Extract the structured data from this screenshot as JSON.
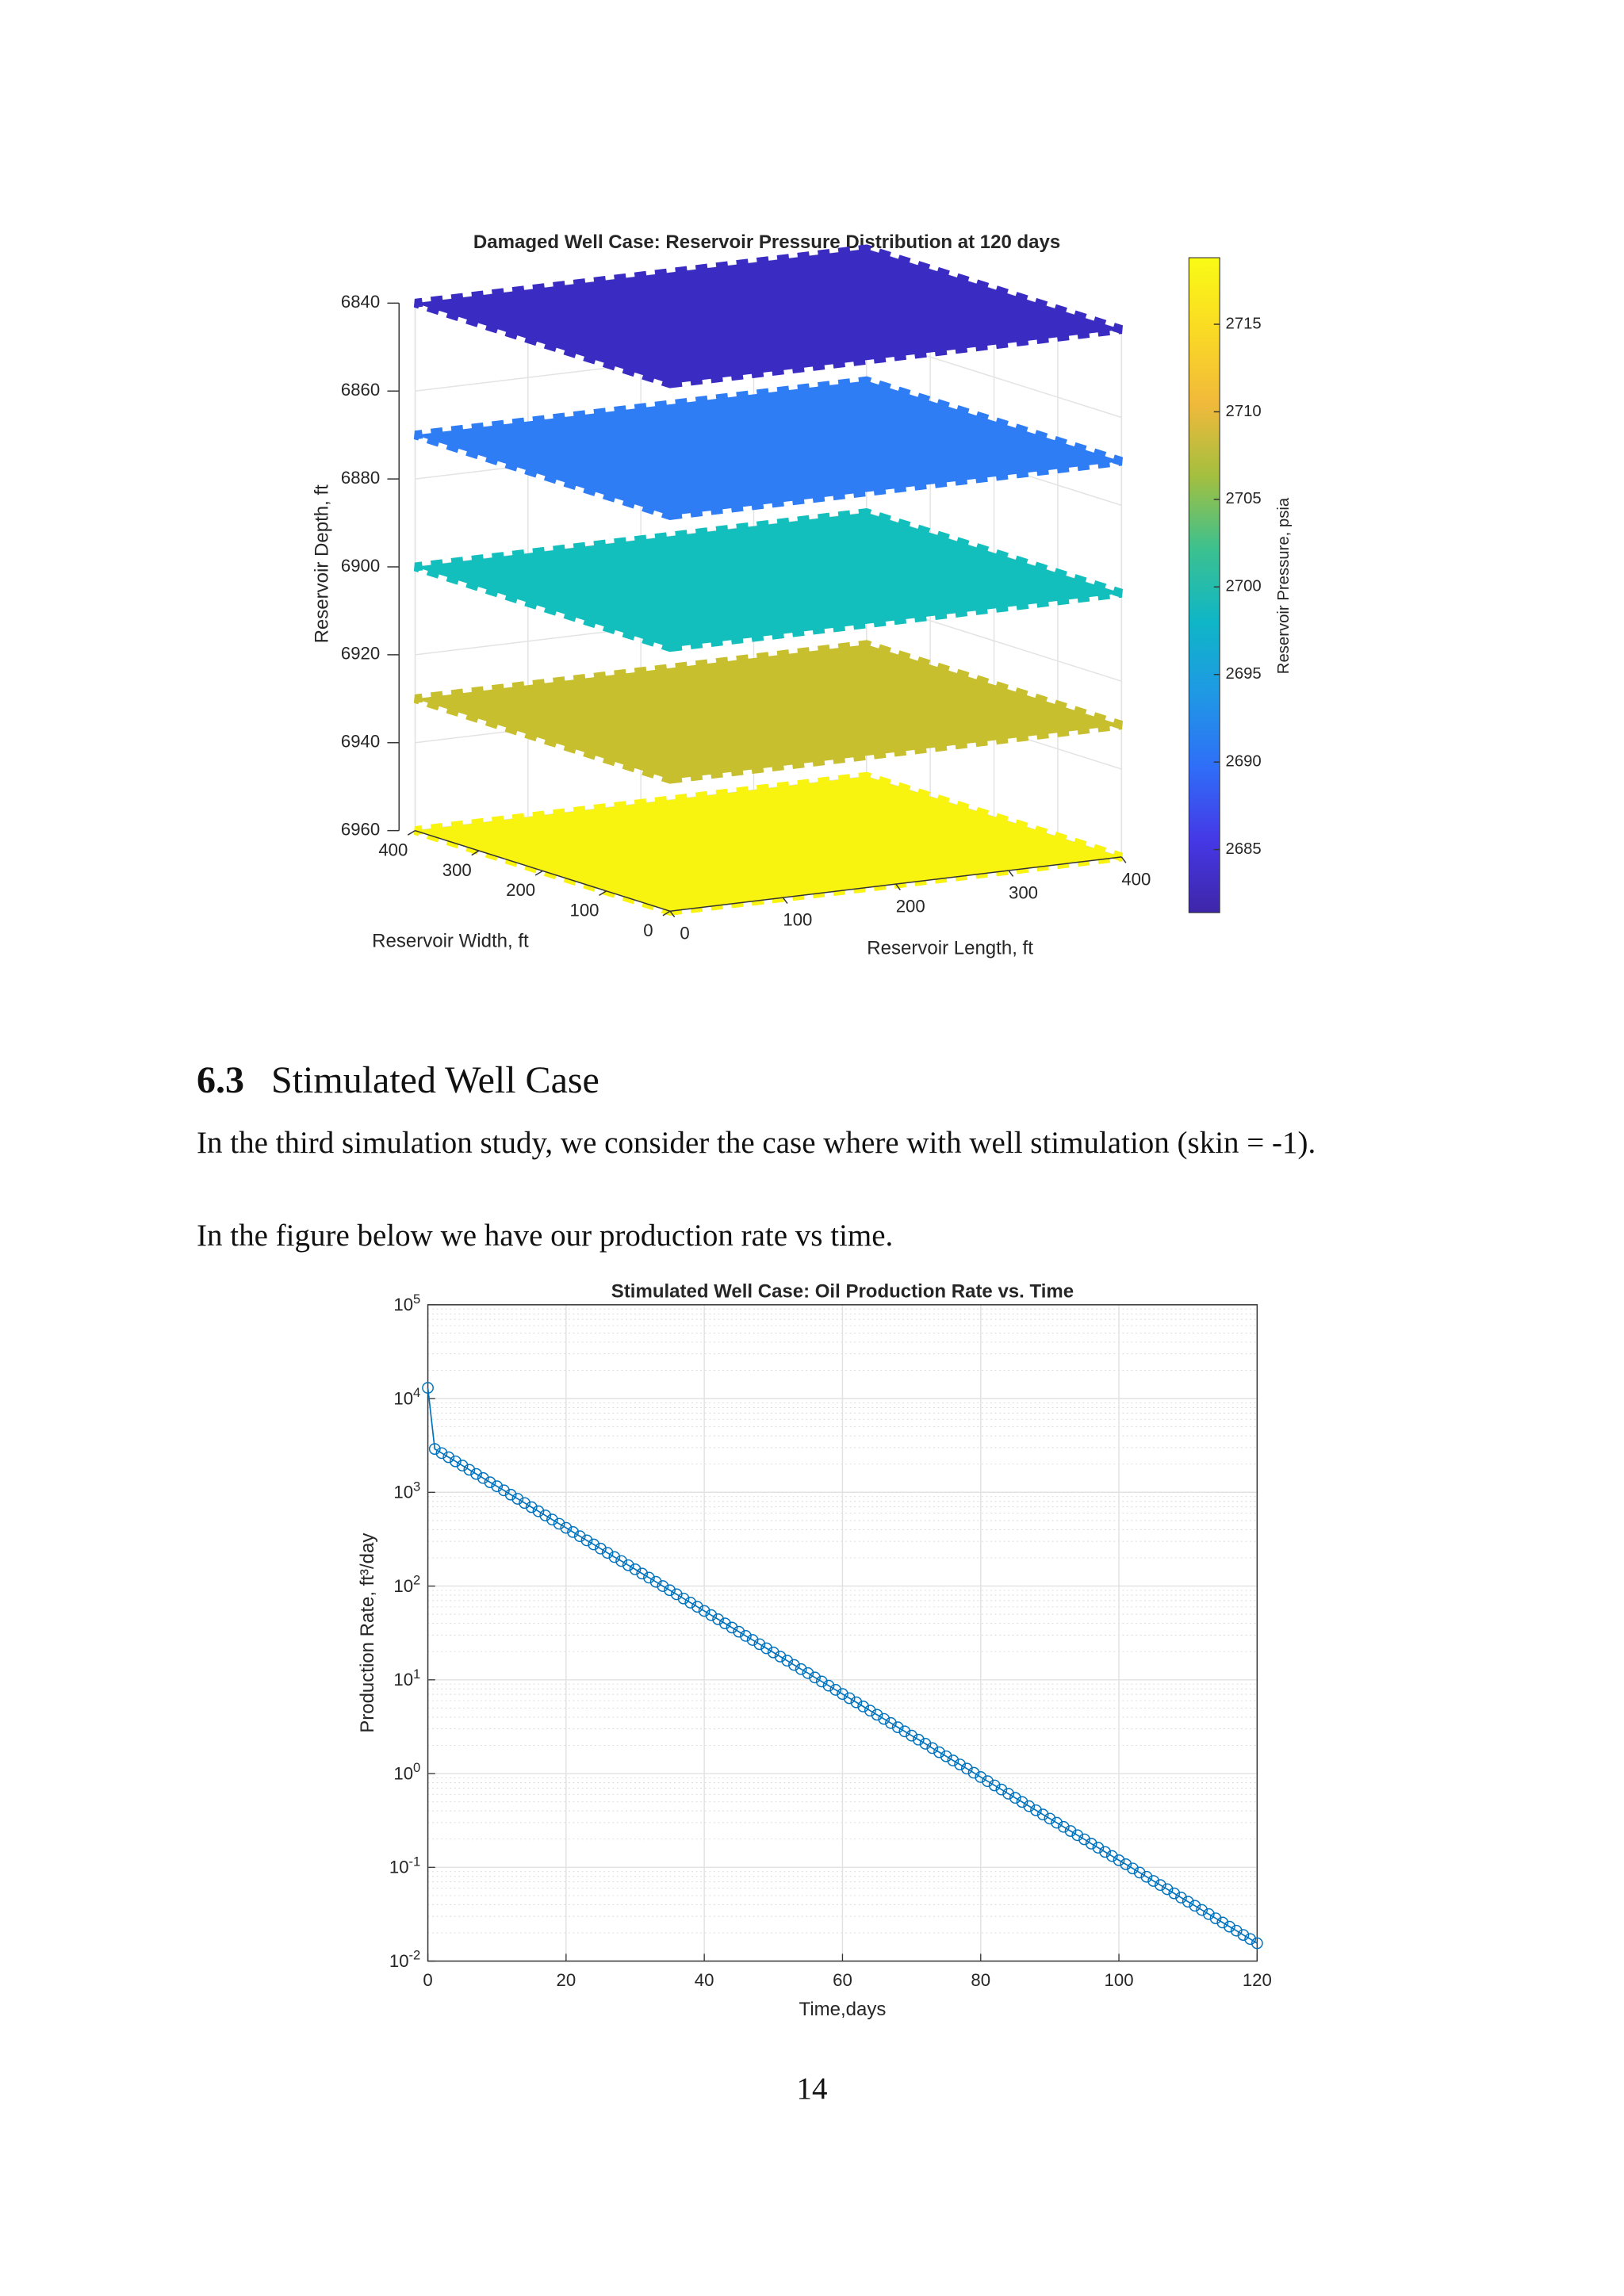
{
  "heading": {
    "number": "6.3",
    "title": "Stimulated Well Case"
  },
  "paragraphs": [
    "In the third simulation study, we consider the case where with well stimulation (skin = -1).",
    "In the figure below we have our production rate vs time."
  ],
  "page_number": "14",
  "chart_data": [
    {
      "type": "slice3d",
      "title": "Damaged Well Case: Reservoir Pressure Distribution at 120 days",
      "xlabel": "Reservoir Length, ft",
      "ylabel": "Reservoir Width, ft",
      "zlabel": "Reservoir Depth, ft",
      "colorbar_label": "Reservoir Pressure, psia",
      "xlim": [
        0,
        400
      ],
      "xticks": [
        0,
        100,
        200,
        300,
        400
      ],
      "ylim": [
        0,
        400
      ],
      "yticks": [
        0,
        100,
        200,
        300,
        400
      ],
      "zlim": [
        6840,
        6960
      ],
      "zticks": [
        6840,
        6860,
        6880,
        6900,
        6920,
        6940,
        6960
      ],
      "zdir": "reverse",
      "clim": [
        2681.4,
        2718.8
      ],
      "cticks": [
        2685,
        2690,
        2695,
        2700,
        2705,
        2710,
        2715
      ],
      "colormap": [
        "#3e26a8",
        "#4538e6",
        "#2f6ef8",
        "#1f98e4",
        "#0fb6c7",
        "#3cc18f",
        "#a4bf3f",
        "#f1b93b",
        "#fada24",
        "#f9fb15"
      ],
      "layers": [
        {
          "depth": 6840,
          "pressure": 2682,
          "color": "#3a2cc2"
        },
        {
          "depth": 6870,
          "pressure": 2691,
          "color": "#2f7df5"
        },
        {
          "depth": 6900,
          "pressure": 2699,
          "color": "#13bfbd"
        },
        {
          "depth": 6930,
          "pressure": 2709,
          "color": "#c8bf2e"
        },
        {
          "depth": 6960,
          "pressure": 2717,
          "color": "#f8f30f"
        }
      ]
    },
    {
      "type": "line",
      "log_y": true,
      "grid": true,
      "minor_grid": true,
      "marker": "circle",
      "color": "#0072bd",
      "title": "Stimulated Well Case: Oil Production Rate vs. Time",
      "xlabel": "Time,days",
      "ylabel": "Production Rate, ft³/day",
      "xlim": [
        0,
        120
      ],
      "xticks": [
        0,
        20,
        40,
        60,
        80,
        100,
        120
      ],
      "ylim": [
        0.01,
        100000
      ],
      "yticks": [
        {
          "value": 0.01,
          "label": "10^-2"
        },
        {
          "value": 0.1,
          "label": "10^-1"
        },
        {
          "value": 1,
          "label": "10^0"
        },
        {
          "value": 10,
          "label": "10^1"
        },
        {
          "value": 100,
          "label": "10^2"
        },
        {
          "value": 1000,
          "label": "10^3"
        },
        {
          "value": 10000,
          "label": "10^4"
        },
        {
          "value": 100000,
          "label": "10^5"
        }
      ],
      "x": [
        0,
        1,
        2,
        3,
        4,
        5,
        6,
        7,
        8,
        9,
        10,
        11,
        12,
        13,
        14,
        15,
        16,
        17,
        18,
        19,
        20,
        21,
        22,
        23,
        24,
        25,
        26,
        27,
        28,
        29,
        30,
        31,
        32,
        33,
        34,
        35,
        36,
        37,
        38,
        39,
        40,
        41,
        42,
        43,
        44,
        45,
        46,
        47,
        48,
        49,
        50,
        51,
        52,
        53,
        54,
        55,
        56,
        57,
        58,
        59,
        60,
        61,
        62,
        63,
        64,
        65,
        66,
        67,
        68,
        69,
        70,
        71,
        72,
        73,
        74,
        75,
        76,
        77,
        78,
        79,
        80,
        81,
        82,
        83,
        84,
        85,
        86,
        87,
        88,
        89,
        90,
        91,
        92,
        93,
        94,
        95,
        96,
        97,
        98,
        99,
        100,
        101,
        102,
        103,
        104,
        105,
        106,
        107,
        108,
        109,
        110,
        111,
        112,
        113,
        114,
        115,
        116,
        117,
        118,
        119,
        120
      ],
      "values": [
        13000,
        2900,
        2620,
        2370,
        2140,
        1930,
        1740,
        1570,
        1420,
        1280,
        1160,
        1050,
        944,
        853,
        770,
        695,
        628,
        567,
        512,
        462,
        418,
        377,
        340,
        307,
        278,
        251,
        226,
        204,
        185,
        167,
        151,
        136,
        123,
        111,
        100,
        90.4,
        81.7,
        73.7,
        66.6,
        60.1,
        54.3,
        49.0,
        44.3,
        40.0,
        36.1,
        32.6,
        29.4,
        26.6,
        24.0,
        21.7,
        19.6,
        17.7,
        16.0,
        14.4,
        13.0,
        11.8,
        10.6,
        9.59,
        8.66,
        7.82,
        7.06,
        6.37,
        5.76,
        5.2,
        4.69,
        4.24,
        3.83,
        3.46,
        3.12,
        2.82,
        2.54,
        2.3,
        2.08,
        1.87,
        1.69,
        1.53,
        1.38,
        1.25,
        1.13,
        1.02,
        0.918,
        0.829,
        0.748,
        0.676,
        0.61,
        0.551,
        0.498,
        0.449,
        0.406,
        0.366,
        0.331,
        0.299,
        0.27,
        0.244,
        0.22,
        0.199,
        0.179,
        0.162,
        0.146,
        0.132,
        0.119,
        0.108,
        0.0973,
        0.0879,
        0.0793,
        0.0716,
        0.0647,
        0.0584,
        0.0528,
        0.0476,
        0.043,
        0.0389,
        0.0351,
        0.0317,
        0.0286,
        0.0258,
        0.0233,
        0.0211,
        0.019,
        0.0172,
        0.0155
      ]
    }
  ]
}
